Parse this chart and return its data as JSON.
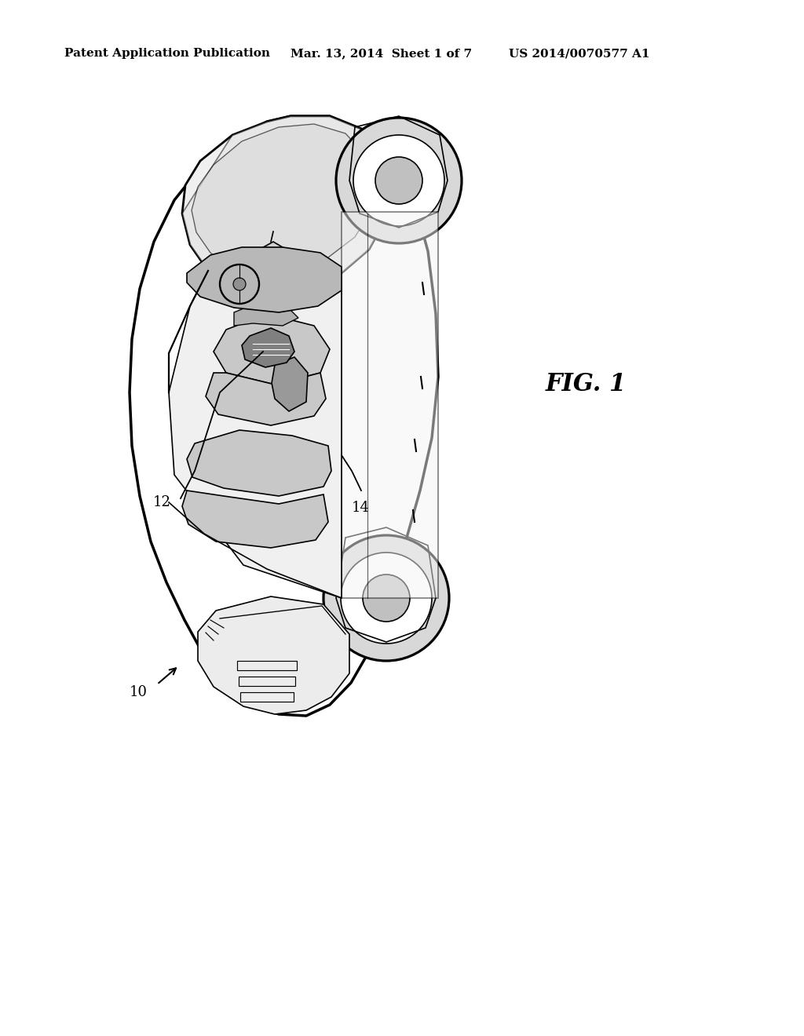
{
  "bg_color": "#ffffff",
  "header_left": "Patent Application Publication",
  "header_center": "Mar. 13, 2014  Sheet 1 of 7",
  "header_right": "US 2014/0070577 A1",
  "fig_label": "FIG. 1",
  "ref_10": "10",
  "ref_12": "12",
  "ref_14": "14",
  "header_fontsize": 11,
  "fig_label_fontsize": 22,
  "ref_fontsize": 13,
  "line_color": "#000000",
  "lw_main": 2.0,
  "lw_detail": 1.2,
  "fill_light": "#e8e8e8",
  "fill_medium": "#c8c8c8",
  "fill_dark": "#999999"
}
